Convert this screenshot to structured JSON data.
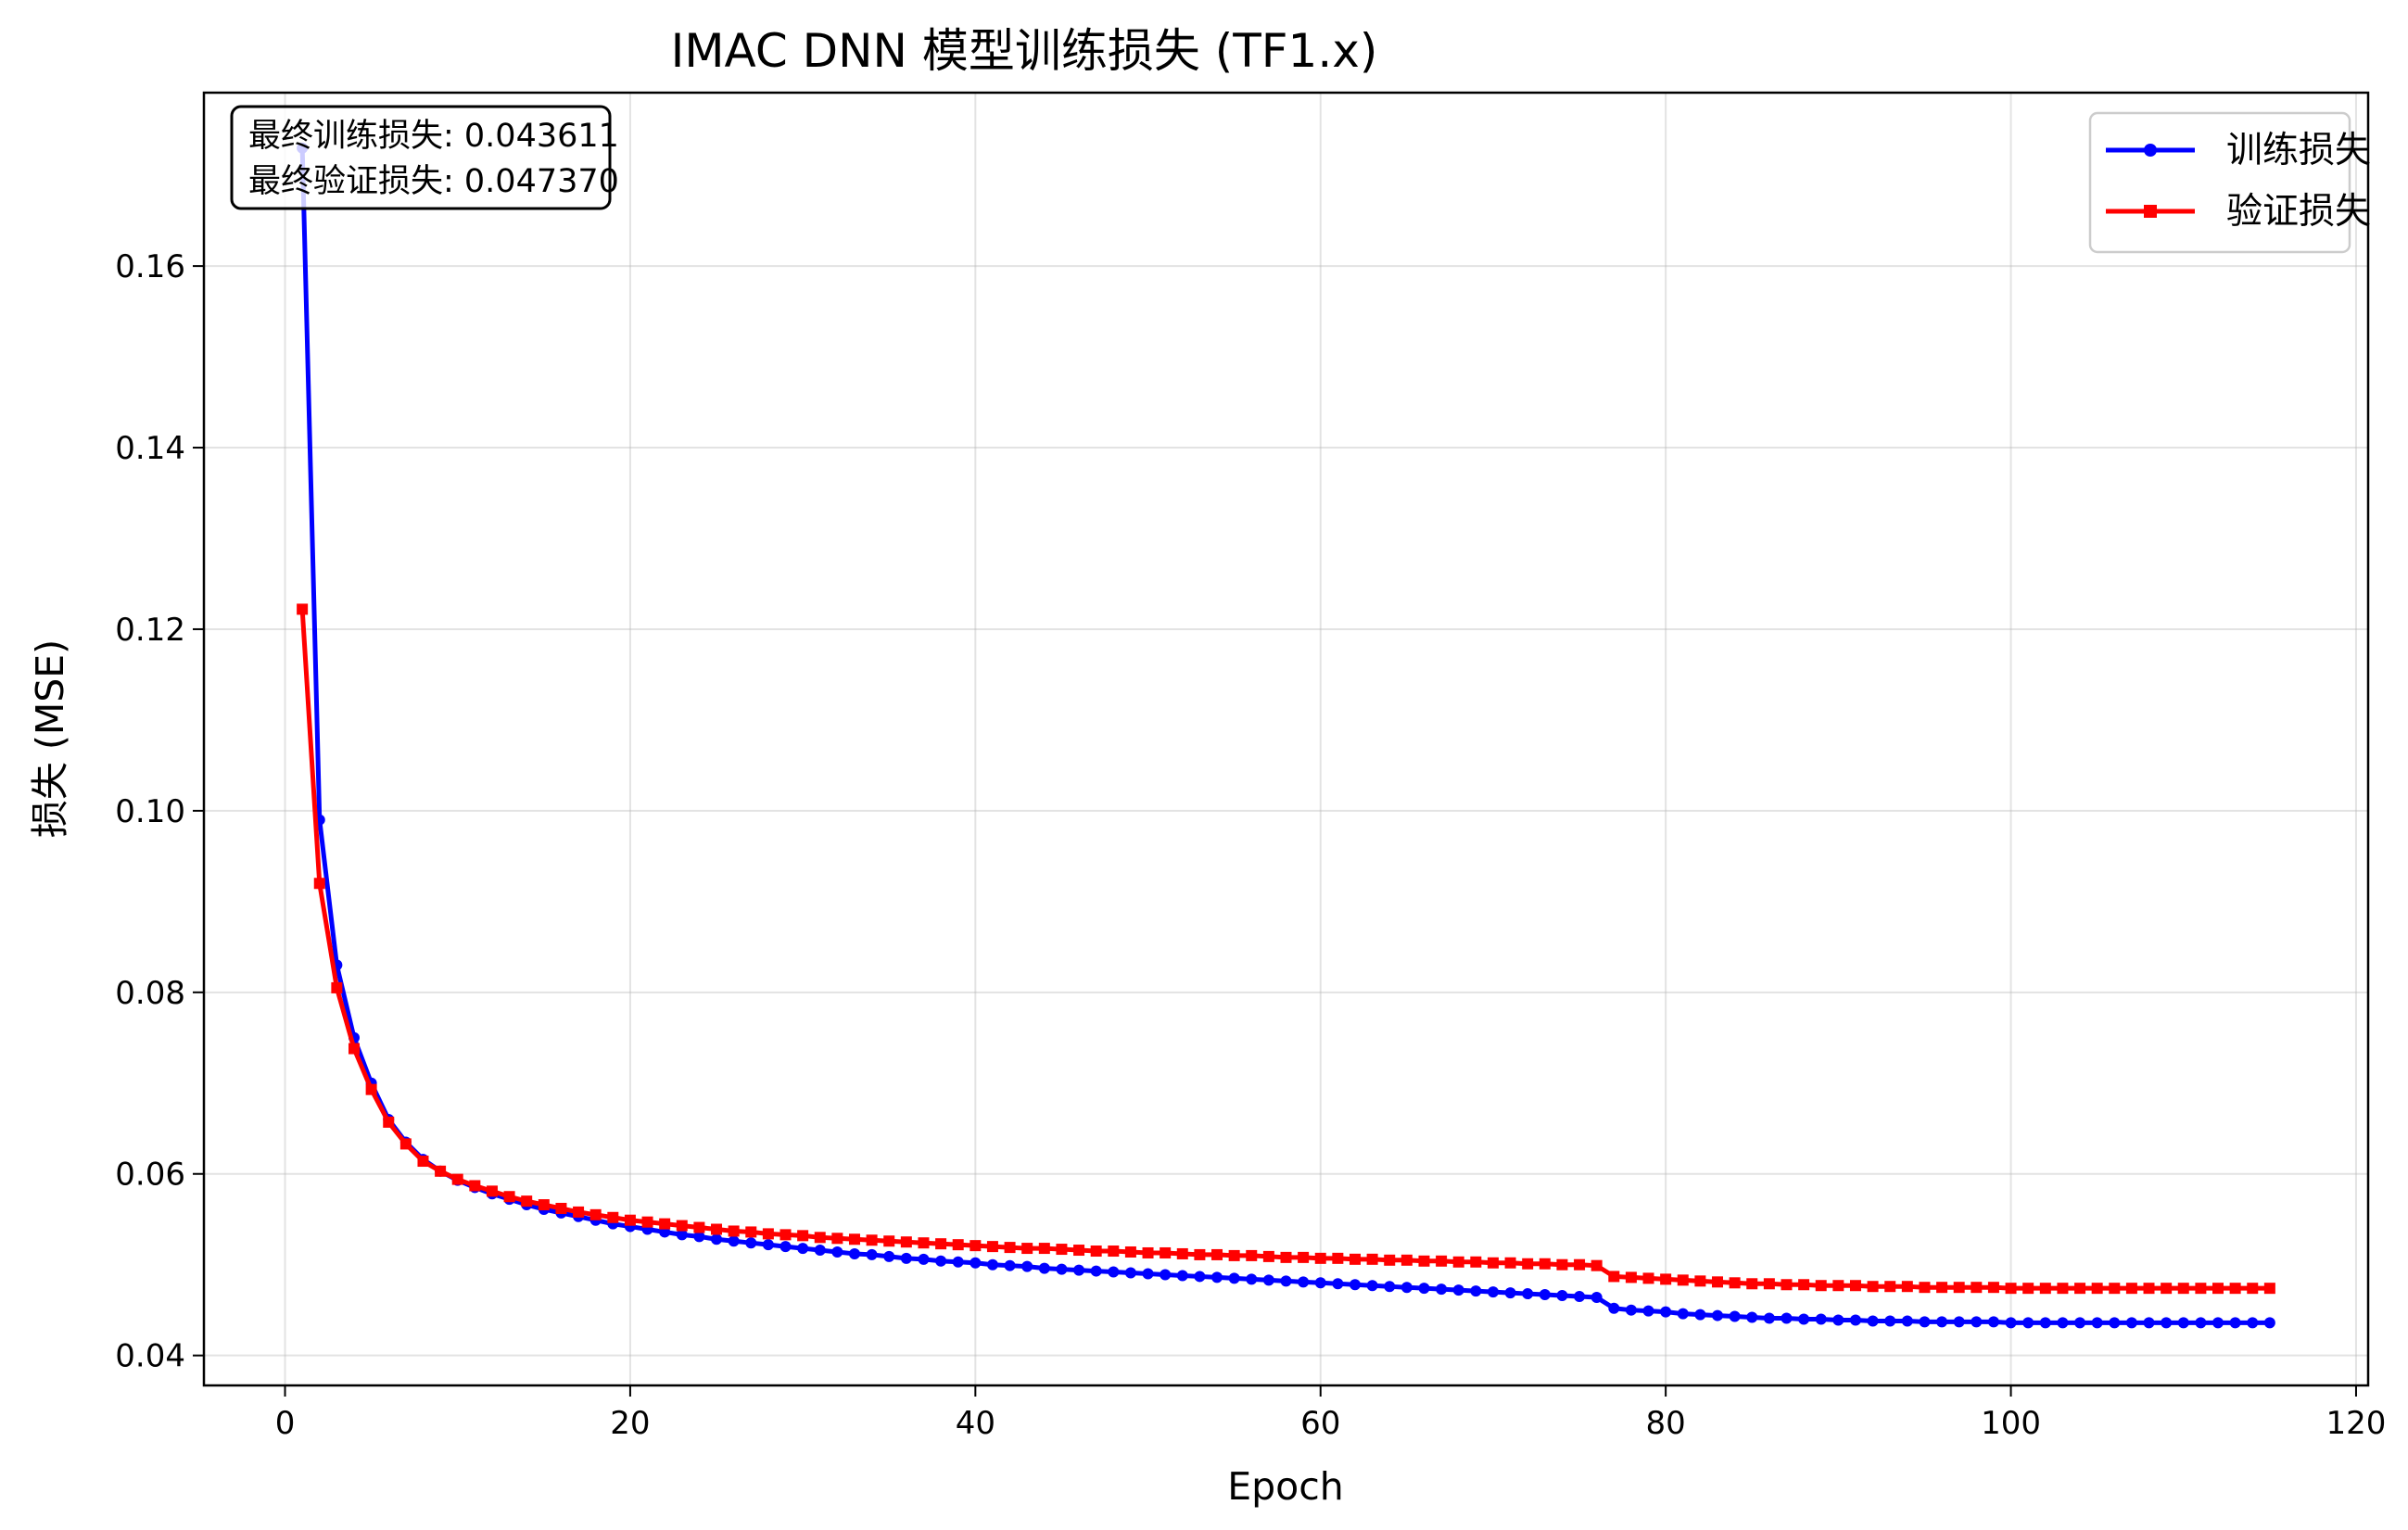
{
  "chart_data": {
    "type": "line",
    "title": "IMAC DNN 模型训练损失 (TF1.x)",
    "xlabel": "Epoch",
    "ylabel": "损失 (MSE)",
    "xlim": [
      -4.7,
      120.7
    ],
    "ylim": [
      0.0367,
      0.1791
    ],
    "xticks": [
      0,
      20,
      40,
      60,
      80,
      100,
      120
    ],
    "yticks": [
      0.04,
      0.06,
      0.08,
      0.1,
      0.12,
      0.14,
      0.16
    ],
    "ytick_labels": [
      "0.04",
      "0.06",
      "0.08",
      "0.10",
      "0.12",
      "0.14",
      "0.16"
    ],
    "grid": true,
    "legend_position": "top-right",
    "annotation": {
      "line1": "最终训练损失: 0.043611",
      "line2": "最终验证损失: 0.047370",
      "position": "top-left"
    },
    "series": [
      {
        "name": "训练损失",
        "color": "#0000ff",
        "marker": "circle",
        "x_start": 1,
        "values": [
          0.173,
          0.099,
          0.083,
          0.075,
          0.07,
          0.066,
          0.0635,
          0.0616,
          0.0603,
          0.0593,
          0.0585,
          0.0578,
          0.0572,
          0.0566,
          0.0561,
          0.0557,
          0.0553,
          0.0549,
          0.0545,
          0.0542,
          0.0539,
          0.0536,
          0.0533,
          0.0531,
          0.0528,
          0.0526,
          0.0524,
          0.0522,
          0.052,
          0.0518,
          0.0516,
          0.0514,
          0.0512,
          0.0511,
          0.0509,
          0.0507,
          0.0506,
          0.0504,
          0.0503,
          0.0502,
          0.05,
          0.0499,
          0.0498,
          0.0496,
          0.0495,
          0.0494,
          0.0493,
          0.0492,
          0.0491,
          0.049,
          0.0489,
          0.0488,
          0.0487,
          0.0486,
          0.0485,
          0.0484,
          0.0483,
          0.0482,
          0.0481,
          0.048,
          0.0479,
          0.0478,
          0.0477,
          0.0476,
          0.0475,
          0.0474,
          0.0473,
          0.0472,
          0.0471,
          0.047,
          0.0469,
          0.0468,
          0.0467,
          0.0466,
          0.0465,
          0.0464,
          0.0452,
          0.045,
          0.0449,
          0.0448,
          0.0446,
          0.0445,
          0.0444,
          0.0443,
          0.0442,
          0.0441,
          0.0441,
          0.044,
          0.044,
          0.0439,
          0.0439,
          0.0438,
          0.0438,
          0.0438,
          0.0437,
          0.0437,
          0.0437,
          0.0437,
          0.0437,
          0.0436,
          0.0436,
          0.0436,
          0.0436,
          0.0436,
          0.0436,
          0.0436,
          0.0436,
          0.0436,
          0.0436,
          0.0436,
          0.0436,
          0.0436,
          0.0436,
          0.0436,
          0.0436
        ]
      },
      {
        "name": "验证损失",
        "color": "#ff0000",
        "marker": "square",
        "x_start": 1,
        "values": [
          0.1222,
          0.092,
          0.0805,
          0.0738,
          0.0693,
          0.0657,
          0.0633,
          0.0614,
          0.0603,
          0.0594,
          0.0587,
          0.0581,
          0.0575,
          0.057,
          0.0566,
          0.0562,
          0.0558,
          0.0555,
          0.0552,
          0.0549,
          0.0547,
          0.0545,
          0.0543,
          0.0541,
          0.0539,
          0.0537,
          0.0536,
          0.0534,
          0.0533,
          0.0532,
          0.053,
          0.0529,
          0.0528,
          0.0527,
          0.0526,
          0.0525,
          0.0524,
          0.0523,
          0.0522,
          0.0521,
          0.052,
          0.0519,
          0.0518,
          0.0518,
          0.0517,
          0.0516,
          0.0515,
          0.0515,
          0.0514,
          0.0513,
          0.0513,
          0.0512,
          0.0511,
          0.0511,
          0.051,
          0.051,
          0.0509,
          0.0508,
          0.0508,
          0.0507,
          0.0507,
          0.0506,
          0.0506,
          0.0505,
          0.0505,
          0.0504,
          0.0504,
          0.0503,
          0.0503,
          0.0502,
          0.0502,
          0.0501,
          0.0501,
          0.05,
          0.05,
          0.0499,
          0.0487,
          0.0486,
          0.0485,
          0.0484,
          0.0483,
          0.0482,
          0.0481,
          0.048,
          0.0479,
          0.0479,
          0.0478,
          0.0478,
          0.0477,
          0.0477,
          0.0477,
          0.0476,
          0.0476,
          0.0476,
          0.0475,
          0.0475,
          0.0475,
          0.0475,
          0.0475,
          0.0474,
          0.0474,
          0.0474,
          0.0474,
          0.0474,
          0.0474,
          0.0474,
          0.0474,
          0.0474,
          0.0474,
          0.0474,
          0.0474,
          0.0474,
          0.0474,
          0.0474,
          0.0474
        ]
      }
    ]
  }
}
